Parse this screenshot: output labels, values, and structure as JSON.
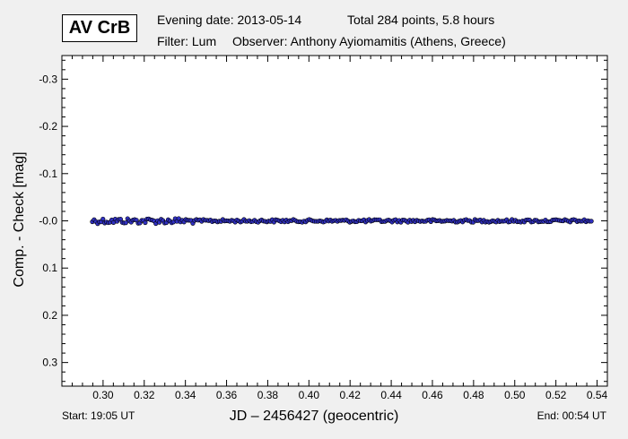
{
  "header": {
    "star_name": "AV CrB",
    "evening_date": "Evening date: 2013-05-14",
    "total": "Total 284 points, 5.8 hours",
    "filter": "Filter: Lum",
    "observer": "Observer: Anthony Ayiomamitis (Athens, Greece)"
  },
  "footer": {
    "start": "Start: 19:05 UT",
    "end": "End: 00:54 UT"
  },
  "colors": {
    "background": "#f0f0f0",
    "plot_bg": "#ffffff",
    "marker_fill": "#3030c0",
    "marker_edge": "#000000"
  },
  "chart_data": {
    "type": "scatter",
    "xlabel": "JD – 2456427  (geocentric)",
    "ylabel": "Comp. - Check [mag]",
    "xlim": [
      0.28,
      0.545
    ],
    "ylim": [
      -0.35,
      0.35
    ],
    "y_inverted": true,
    "xticks": [
      "0.30",
      "0.32",
      "0.34",
      "0.36",
      "0.38",
      "0.40",
      "0.42",
      "0.44",
      "0.46",
      "0.48",
      "0.50",
      "0.52",
      "0.54"
    ],
    "yticks": [
      "-0.3",
      "-0.2",
      "-0.1",
      "-0.0",
      "0.1",
      "0.2",
      "0.3"
    ],
    "grid": false,
    "series": [
      {
        "x_start": 0.2948,
        "x_end": 0.5372,
        "count": 284,
        "mean_y": 0.0,
        "scatter": 0.003
      }
    ]
  }
}
